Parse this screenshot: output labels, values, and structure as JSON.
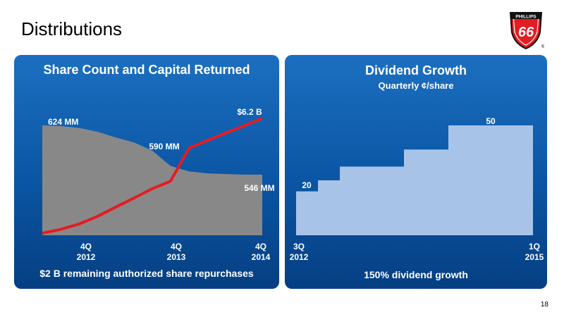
{
  "slide": {
    "title": "Distributions",
    "page_number": "18"
  },
  "logo": {
    "top_text": "PHILLIPS",
    "number": "66",
    "mark": "®"
  },
  "chart_data": [
    {
      "type": "area",
      "title": "Share Count and Capital Returned",
      "categories": [
        "4Q 2012",
        "4Q 2013",
        "4Q 2014"
      ],
      "tick_labels": [
        {
          "line1": "4Q",
          "line2": "2012"
        },
        {
          "line1": "4Q",
          "line2": "2013"
        },
        {
          "line1": "4Q",
          "line2": "2014"
        }
      ],
      "series": [
        {
          "kind": "area",
          "color": "#888888",
          "x": [
            0,
            0.33,
            0.67,
            1,
            1.33,
            1.67,
            2,
            2.33,
            2.67,
            3,
            3.33,
            3.67,
            4
          ],
          "values": [
            624,
            623,
            620,
            614,
            605,
            597,
            584,
            560,
            551,
            548,
            547,
            546,
            546
          ]
        },
        {
          "kind": "line",
          "color": "#e41c23",
          "x": [
            0,
            0.33,
            0.67,
            1,
            1.33,
            1.67,
            2,
            2.33,
            2.67,
            3,
            3.33,
            3.67,
            4
          ],
          "values": [
            0.0,
            0.2,
            0.5,
            0.9,
            1.4,
            1.9,
            2.4,
            2.8,
            4.6,
            5.0,
            5.4,
            5.8,
            6.2
          ]
        }
      ],
      "annotations": [
        "624 MM",
        "590 MM",
        "546 MM",
        "$6.2 B"
      ],
      "footnote": "$2 B remaining authorized share repurchases"
    },
    {
      "type": "area",
      "title": "Dividend Growth",
      "subtitle": "Quarterly ¢/share",
      "categories": [
        "3Q 2012",
        "1Q 2015"
      ],
      "tick_labels": [
        {
          "line1": "3Q",
          "line2": "2012"
        },
        {
          "line1": "1Q",
          "line2": "2015"
        }
      ],
      "series": [
        {
          "kind": "step",
          "color": "#a7c4e8",
          "x": [
            "3Q 2012",
            "4Q 2012",
            "2Q 2013",
            "2Q 2014",
            "1Q 2015"
          ],
          "values": [
            20,
            25,
            31.25,
            39,
            50
          ]
        }
      ],
      "annotations": [
        "20",
        "50"
      ],
      "footnote": "150% dividend growth"
    }
  ]
}
